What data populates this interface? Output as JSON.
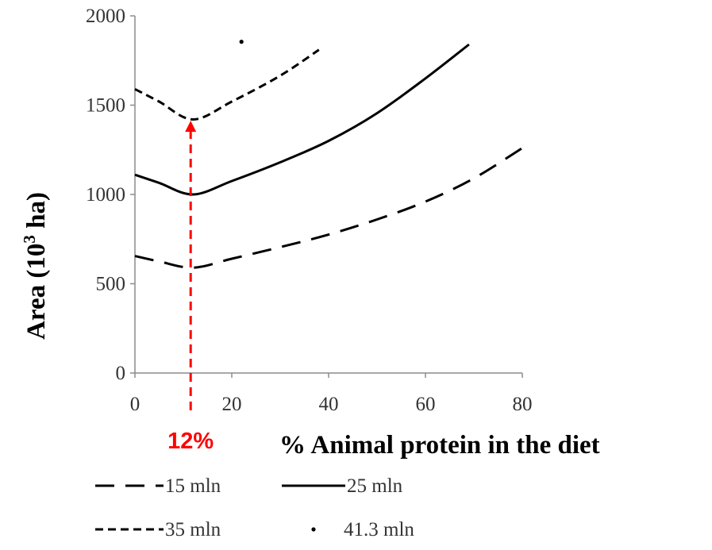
{
  "chart_data": {
    "type": "line",
    "title": "",
    "xlabel": "% Animal protein in the diet",
    "ylabel_main": "Area (10",
    "ylabel_sup": "3",
    "ylabel_tail": " ha)",
    "xlim": [
      0,
      80
    ],
    "ylim": [
      0,
      2000
    ],
    "x_ticks": [
      0,
      20,
      40,
      60,
      80
    ],
    "y_ticks": [
      0,
      500,
      1000,
      1500,
      2000
    ],
    "grid": false,
    "legend_position": "bottom",
    "series": [
      {
        "name": "15 mln",
        "style": "long-dash",
        "color": "#000000",
        "x": [
          0,
          5,
          12,
          20,
          30,
          40,
          50,
          60,
          70,
          80
        ],
        "y": [
          655,
          625,
          590,
          640,
          705,
          775,
          860,
          960,
          1090,
          1260
        ]
      },
      {
        "name": "25 mln",
        "style": "solid",
        "color": "#000000",
        "x": [
          0,
          5,
          12,
          20,
          30,
          40,
          50,
          60,
          69
        ],
        "y": [
          1110,
          1065,
          1000,
          1075,
          1180,
          1300,
          1455,
          1650,
          1840
        ]
      },
      {
        "name": "35 mln",
        "style": "short-dash",
        "color": "#000000",
        "x": [
          0,
          5,
          12,
          20,
          30,
          38
        ],
        "y": [
          1590,
          1520,
          1420,
          1520,
          1665,
          1810
        ]
      },
      {
        "name": "41.3 mln",
        "style": "point",
        "color": "#000000",
        "x": [
          22
        ],
        "y": [
          1855
        ]
      }
    ],
    "annotations": [
      {
        "label": "12%",
        "x": 12,
        "y_from": -80,
        "y_to": 1395,
        "color": "#ff0000"
      }
    ]
  }
}
